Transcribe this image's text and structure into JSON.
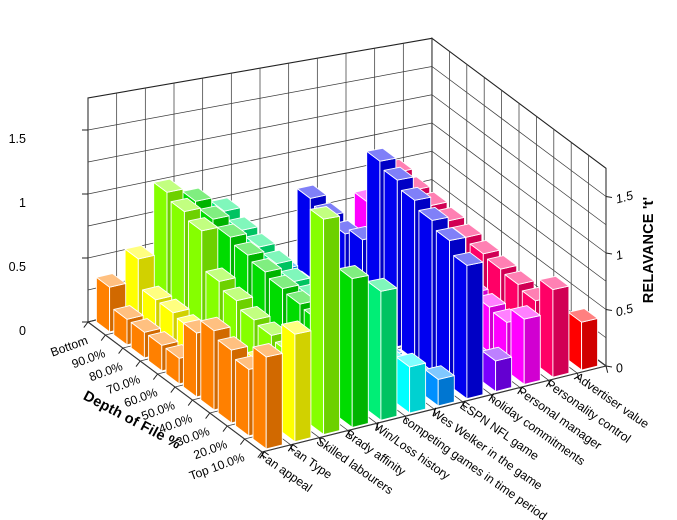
{
  "chart_data": {
    "type": "bar",
    "variant": "3d-block-bars",
    "title": "",
    "background": "#FFFFFF",
    "depth_axis": {
      "title": "Depth of File %",
      "categories": [
        "Bottom",
        "90.0%",
        "80.0%",
        "70.0%",
        "60.0%",
        "50.0%",
        "40.0%",
        "30.0%",
        "20.0%",
        "Top 10.0%"
      ]
    },
    "z_axis": {
      "title": "RELAVANCE 't'",
      "ticks": [
        0,
        0.5,
        1,
        1.5
      ],
      "max": 1.75,
      "gridline_step": 0.25
    },
    "legend_position": "none",
    "grid": true,
    "series": [
      {
        "name": "Fan appeal",
        "color": "#FF8000",
        "values": [
          0.35,
          0.2,
          0.2,
          0.2,
          0.2,
          0.5,
          0.62,
          0.57,
          0.52,
          0.72
        ]
      },
      {
        "name": "Fan Type",
        "color": "#FFFF00",
        "values": [
          0.52,
          0.3,
          0.3,
          0.28,
          0.28,
          0.3,
          0.3,
          0.42,
          0.3,
          0.85
        ]
      },
      {
        "name": "Skilled labourers",
        "color": "#85FF00",
        "values": [
          1.0,
          0.95,
          0.9,
          0.6,
          0.55,
          0.5,
          0.48,
          0.45,
          0.42,
          1.72
        ]
      },
      {
        "name": "Brady affinity",
        "color": "#00DC00",
        "values": [
          0.88,
          0.84,
          0.8,
          0.76,
          0.73,
          0.7,
          0.68,
          0.66,
          0.64,
          1.2
        ]
      },
      {
        "name": "Win/Loss history",
        "color": "#00EE76",
        "values": [
          0.75,
          0.7,
          0.67,
          0.64,
          0.6,
          0.58,
          0.55,
          0.52,
          0.5,
          1.05
        ]
      },
      {
        "name": "competing games in time period",
        "color": "#00FFFF",
        "values": [
          0.22,
          0.2,
          0.18,
          0.16,
          0.15,
          0.14,
          0.12,
          0.12,
          0.3,
          0.38
        ]
      },
      {
        "name": "Wes Welker in the game",
        "color": "#0090FF",
        "values": [
          0.16,
          0.14,
          0.12,
          0.11,
          0.1,
          0.1,
          0.09,
          0.08,
          0.12,
          0.22
        ]
      },
      {
        "name": "ESPN NFL game",
        "color": "#0000F0",
        "values": [
          0.7,
          0.66,
          0.62,
          0.68,
          1.45,
          1.4,
          1.34,
          1.28,
          1.22,
          1.12
        ]
      },
      {
        "name": "holiday commitments",
        "color": "#7A00FF",
        "values": [
          0.3,
          0.28,
          0.26,
          0.24,
          0.22,
          0.2,
          0.19,
          0.18,
          0.16,
          0.26
        ]
      },
      {
        "name": "Personal manager",
        "color": "#FF00FF",
        "values": [
          0.56,
          0.54,
          0.52,
          0.5,
          0.48,
          0.46,
          0.45,
          0.44,
          0.42,
          0.56
        ]
      },
      {
        "name": "Personality control",
        "color": "#FF0066",
        "values": [
          0.76,
          0.72,
          0.7,
          0.68,
          0.65,
          0.62,
          0.6,
          0.58,
          0.55,
          0.76
        ]
      },
      {
        "name": "Advertiser value",
        "color": "#FF0000",
        "values": [
          0.3,
          0.28,
          0.26,
          0.24,
          0.22,
          0.2,
          0.19,
          0.18,
          0.16,
          0.42
        ]
      }
    ]
  }
}
